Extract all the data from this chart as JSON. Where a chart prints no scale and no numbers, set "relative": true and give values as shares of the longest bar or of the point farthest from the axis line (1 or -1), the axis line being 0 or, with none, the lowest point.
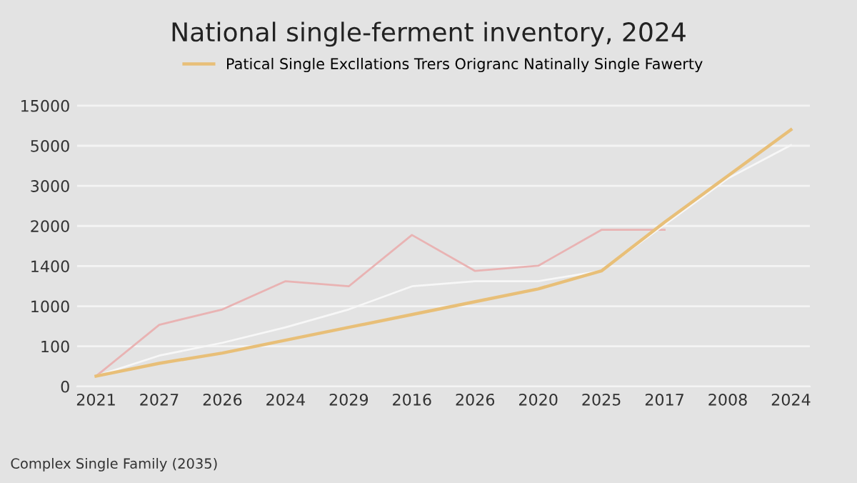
{
  "chart_data": {
    "type": "line",
    "title": "National single-ferment inventory, 2024",
    "categories": [
      "2021",
      "2027",
      "2026",
      "2024",
      "2029",
      "2016",
      "2026",
      "2020",
      "2025",
      "2017",
      "2008",
      "2024"
    ],
    "series": [
      {
        "name": "Patical Single Excllations Trers Origranc Natinally Single Fawerty",
        "color": "#e8bf78",
        "values": [
          0.04,
          0.09,
          0.13,
          0.18,
          0.23,
          0.28,
          0.33,
          0.38,
          0.45,
          0.64,
          0.82,
          1.0
        ]
      },
      {
        "color": "#f7f7f7",
        "values": [
          0.04,
          0.12,
          0.17,
          0.23,
          0.3,
          0.39,
          0.41,
          0.41,
          0.45,
          0.63,
          0.81,
          0.94
        ]
      },
      {
        "color": "#e9b3b3",
        "values": [
          0.04,
          0.24,
          0.3,
          0.41,
          0.39,
          0.59,
          0.45,
          0.47,
          0.61,
          0.61,
          null,
          null
        ]
      }
    ],
    "relative": true,
    "y_categories": [
      "15000",
      "5000",
      "3000",
      "2000",
      "1400",
      "1000",
      "100",
      "0"
    ],
    "grid": "y",
    "legend": "top",
    "marker": "none",
    "line_style": "solid",
    "annotations": [
      "Complex Single Family (2035)"
    ]
  }
}
